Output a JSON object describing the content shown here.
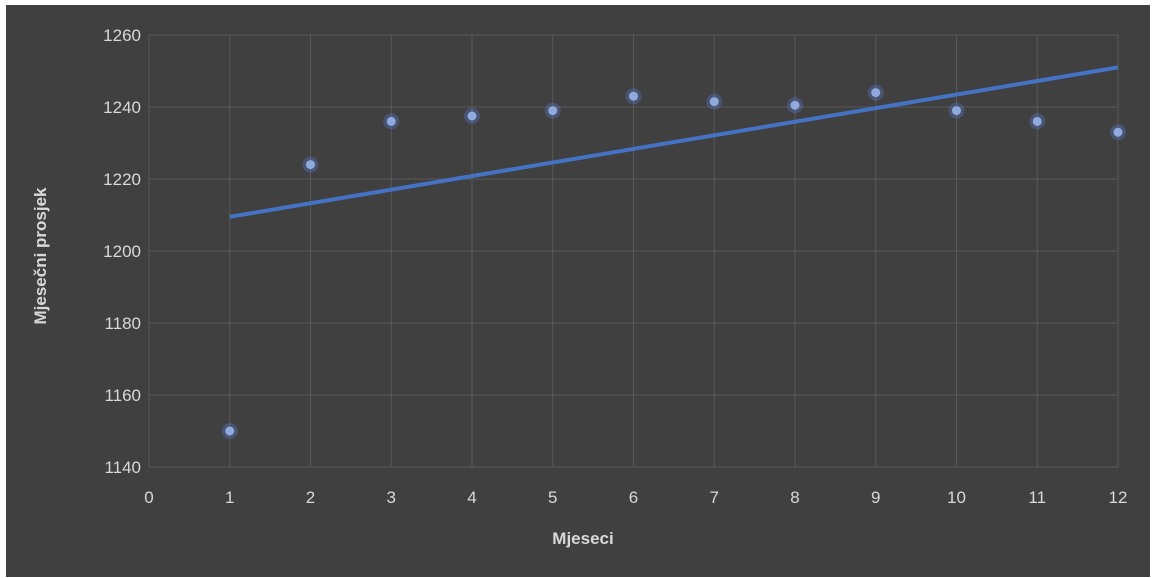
{
  "chart_data": {
    "type": "scatter",
    "title": "",
    "xlabel": "Mjeseci",
    "ylabel": "Mjesečni prosjek",
    "xlim": [
      0,
      12
    ],
    "ylim": [
      1140,
      1260
    ],
    "x_ticks": [
      0,
      1,
      2,
      3,
      4,
      5,
      6,
      7,
      8,
      9,
      10,
      11,
      12
    ],
    "y_ticks": [
      1140,
      1160,
      1180,
      1200,
      1220,
      1240,
      1260
    ],
    "grid": true,
    "series": [
      {
        "x": [
          1,
          2,
          3,
          4,
          5,
          6,
          7,
          8,
          9,
          10,
          11,
          12
        ],
        "y": [
          1150,
          1224,
          1236,
          1237.5,
          1239,
          1243,
          1241.5,
          1240.5,
          1244,
          1239,
          1236,
          1233
        ],
        "color": "#8faadc"
      }
    ],
    "trendline": {
      "type": "linear",
      "x": [
        1,
        12
      ],
      "y": [
        1209.5,
        1251
      ],
      "color": "#4472c4"
    },
    "background": "#404040"
  }
}
